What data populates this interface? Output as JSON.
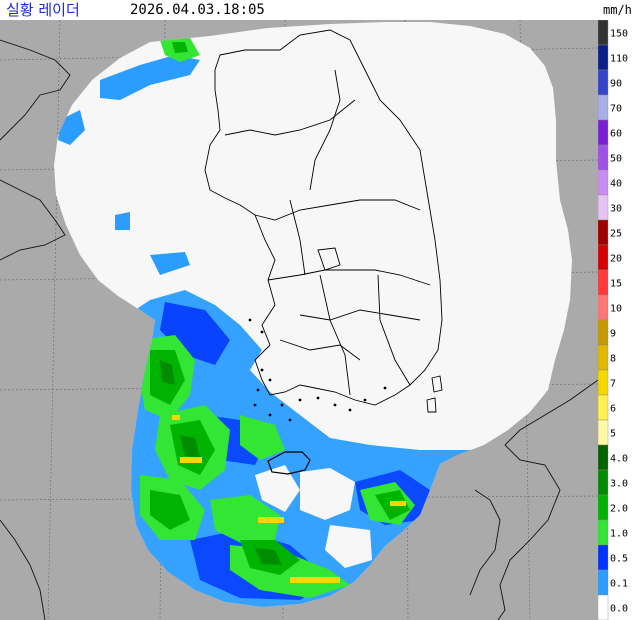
{
  "header": {
    "title": "실황 레이더",
    "timestamp": "2026.04.03.18:05",
    "unit": "mm/h"
  },
  "legend": {
    "bands": [
      {
        "label": "150",
        "color": "#333333"
      },
      {
        "label": "110",
        "color": "#0a1f8c"
      },
      {
        "label": "90",
        "color": "#3344c9"
      },
      {
        "label": "70",
        "color": "#a7aee8"
      },
      {
        "label": "60",
        "color": "#7a1fd6"
      },
      {
        "label": "50",
        "color": "#a050e8"
      },
      {
        "label": "40",
        "color": "#c98cf0"
      },
      {
        "label": "30",
        "color": "#e6c3f5"
      },
      {
        "label": "25",
        "color": "#a00000"
      },
      {
        "label": "20",
        "color": "#d60000"
      },
      {
        "label": "15",
        "color": "#ff3a3a"
      },
      {
        "label": "10",
        "color": "#ff7575"
      },
      {
        "label": "9",
        "color": "#c79b00"
      },
      {
        "label": "8",
        "color": "#e0b800"
      },
      {
        "label": "7",
        "color": "#f5d800"
      },
      {
        "label": "6",
        "color": "#fff04d"
      },
      {
        "label": "5",
        "color": "#fff9a6"
      },
      {
        "label": "4.0",
        "color": "#006400"
      },
      {
        "label": "3.0",
        "color": "#008c00"
      },
      {
        "label": "2.0",
        "color": "#00b300"
      },
      {
        "label": "1.0",
        "color": "#33e633"
      },
      {
        "label": "0.5",
        "color": "#0033ff"
      },
      {
        "label": "0.1",
        "color": "#2a9dff"
      },
      {
        "label": "0.0",
        "color": "#ffffff"
      }
    ]
  },
  "colors": {
    "background": "#aaaaaa",
    "radar_coverage": "#f7f7f7",
    "title_text": "#1a2ad6"
  }
}
